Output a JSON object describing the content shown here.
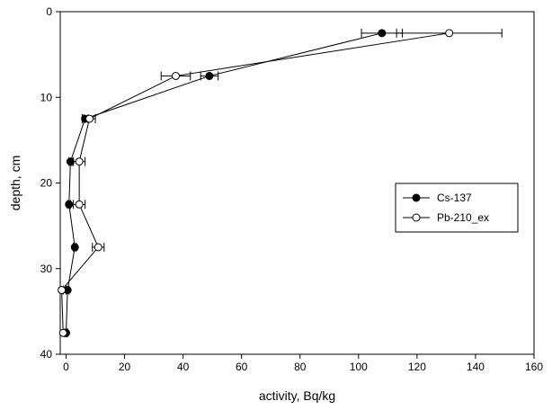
{
  "chart_data": {
    "type": "line",
    "xlabel": "activity, Bq/kg",
    "ylabel": "depth, cm",
    "xlim": [
      -2,
      160
    ],
    "ylim": [
      0,
      40
    ],
    "y_inverted": true,
    "x_ticks": [
      0,
      20,
      40,
      60,
      80,
      100,
      120,
      140,
      160
    ],
    "y_ticks": [
      0,
      10,
      20,
      30,
      40
    ],
    "legend_position": "right-center",
    "series": [
      {
        "name": "Cs-137",
        "marker": "filled-circle",
        "color": "#000000",
        "points": [
          {
            "depth": 2.5,
            "activity": 108,
            "err": 7
          },
          {
            "depth": 7.5,
            "activity": 49,
            "err": 3
          },
          {
            "depth": 12.5,
            "activity": 6.5,
            "err": 1
          },
          {
            "depth": 17.5,
            "activity": 1.5,
            "err": 0.5
          },
          {
            "depth": 22.5,
            "activity": 1.0,
            "err": 0.5
          },
          {
            "depth": 27.5,
            "activity": 3.0,
            "err": 0.5
          },
          {
            "depth": 32.5,
            "activity": 0.5,
            "err": 0.5
          },
          {
            "depth": 37.5,
            "activity": 0.0,
            "err": 0.5
          }
        ]
      },
      {
        "name": "Pb-210_ex",
        "marker": "open-circle",
        "color": "#000000",
        "points": [
          {
            "depth": 2.5,
            "activity": 131,
            "err": 18
          },
          {
            "depth": 7.5,
            "activity": 37.5,
            "err": 5
          },
          {
            "depth": 12.5,
            "activity": 8.0,
            "err": 2
          },
          {
            "depth": 17.5,
            "activity": 4.5,
            "err": 2
          },
          {
            "depth": 22.5,
            "activity": 4.5,
            "err": 2
          },
          {
            "depth": 27.5,
            "activity": 11.0,
            "err": 2
          },
          {
            "depth": 32.5,
            "activity": -1.5,
            "err": 0.5
          },
          {
            "depth": 37.5,
            "activity": -1.0,
            "err": 1
          }
        ]
      }
    ]
  }
}
